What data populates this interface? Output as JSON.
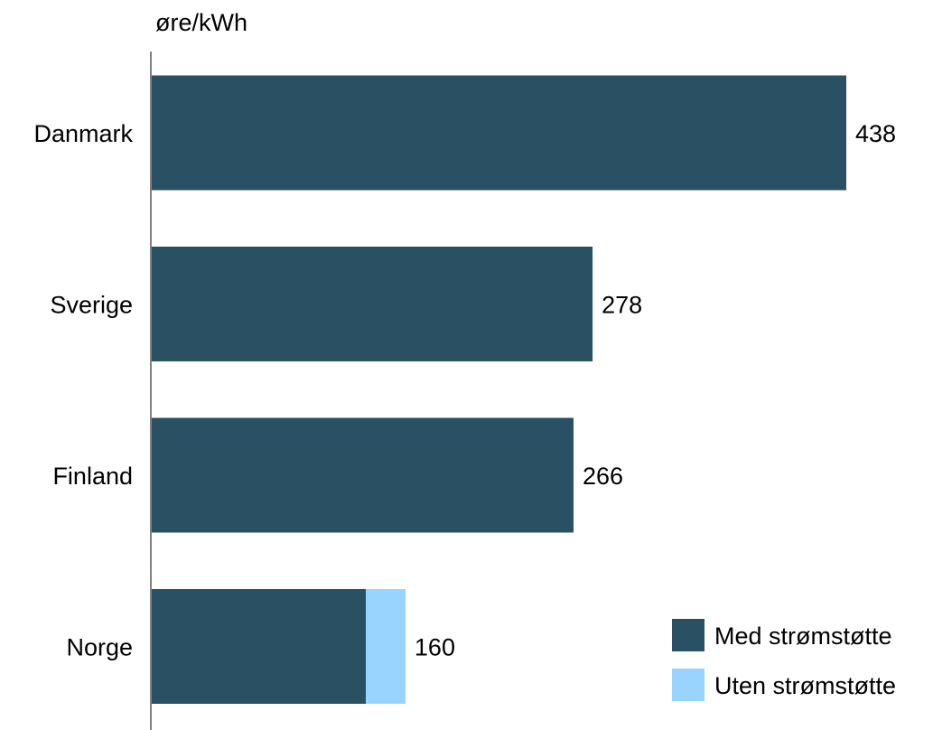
{
  "chart_data": {
    "type": "bar",
    "orientation": "horizontal",
    "stacked": true,
    "ylabel": "øre/kWh",
    "categories": [
      "Danmark",
      "Sverige",
      "Finland",
      "Norge"
    ],
    "series": [
      {
        "name": "Med strømstøtte",
        "color": "#2a5064",
        "values": [
          438,
          278,
          266,
          135
        ]
      },
      {
        "name": "Uten strømstøtte",
        "color": "#99d3ff",
        "values": [
          0,
          0,
          0,
          25
        ]
      }
    ],
    "data_labels": [
      "438",
      "278",
      "266",
      "160"
    ],
    "xlim": [
      0,
      438
    ],
    "grid": false,
    "legend_position": "bottom-right"
  }
}
